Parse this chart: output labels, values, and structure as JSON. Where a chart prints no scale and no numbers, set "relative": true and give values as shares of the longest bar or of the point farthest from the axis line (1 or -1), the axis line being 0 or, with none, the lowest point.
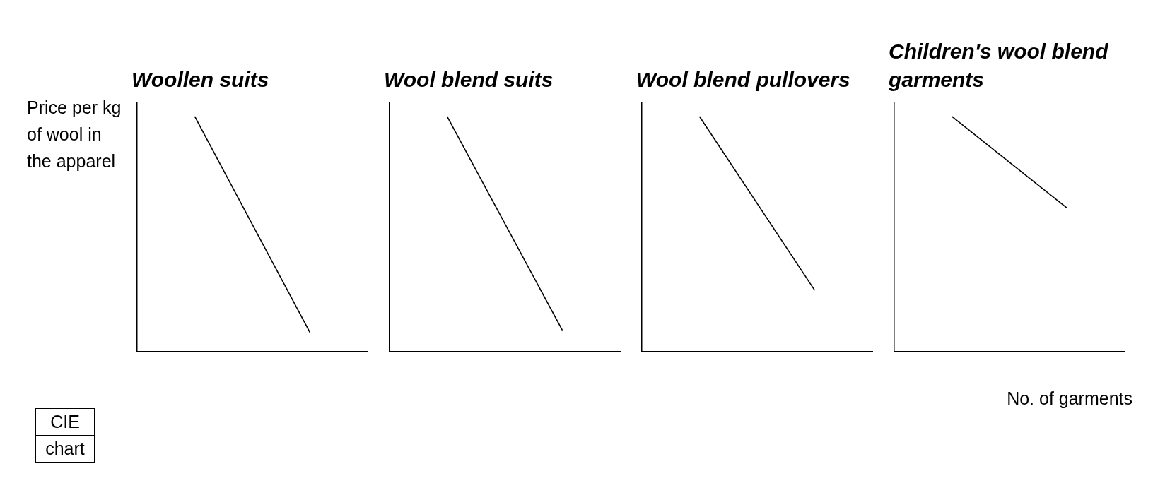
{
  "chart_data": [
    {
      "type": "line",
      "title": "Woollen suits",
      "ylabel": "Price per kg of wool in the apparel",
      "relative": true,
      "categories": [
        null,
        null
      ],
      "series": [
        {
          "color": "#000000",
          "values": [
            1,
            0.08
          ]
        }
      ],
      "marker": "none",
      "grid": false,
      "legend": false,
      "annotations": [
        "CIE chart"
      ]
    },
    {
      "type": "line",
      "title": "Wool blend suits",
      "relative": true,
      "categories": [
        null,
        null
      ],
      "series": [
        {
          "color": "#000000",
          "values": [
            1,
            0.09
          ]
        }
      ],
      "marker": "none",
      "grid": false,
      "legend": false
    },
    {
      "type": "line",
      "title": "Wool blend pullovers",
      "relative": true,
      "categories": [
        null,
        null
      ],
      "series": [
        {
          "color": "#000000",
          "values": [
            1,
            0.26
          ]
        }
      ],
      "marker": "none",
      "grid": false,
      "legend": false
    },
    {
      "type": "line",
      "title": "Children's wool blend garments",
      "xlabel": "No. of garments",
      "relative": true,
      "categories": [
        null,
        null
      ],
      "series": [
        {
          "color": "#000000",
          "values": [
            1,
            0.61
          ]
        }
      ],
      "marker": "none",
      "grid": false,
      "legend": false
    }
  ]
}
